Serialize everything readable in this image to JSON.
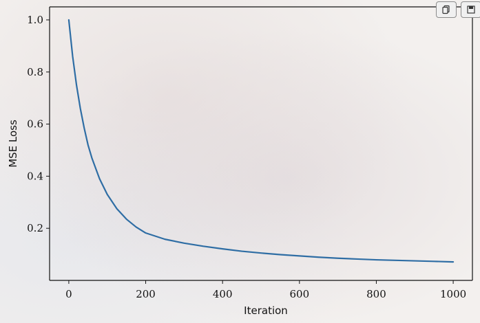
{
  "toolbar": {
    "copy_icon": "copy-icon",
    "save_icon": "save-icon"
  },
  "chart_data": {
    "type": "line",
    "title": "",
    "xlabel": "Iteration",
    "ylabel": "MSE Loss",
    "xlim": [
      -50,
      1050
    ],
    "ylim": [
      0.0,
      1.05
    ],
    "xticks": [
      "0",
      "200",
      "400",
      "600",
      "800",
      "1000"
    ],
    "xtick_values": [
      0,
      200,
      400,
      600,
      800,
      1000
    ],
    "yticks": [
      "0.2",
      "0.4",
      "0.6",
      "0.8",
      "1.0"
    ],
    "ytick_values": [
      0.2,
      0.4,
      0.6,
      0.8,
      1.0
    ],
    "grid": false,
    "series": [
      {
        "color": "#2e6da4",
        "x": [
          0,
          10,
          20,
          30,
          40,
          50,
          60,
          80,
          100,
          125,
          150,
          175,
          200,
          250,
          300,
          350,
          400,
          450,
          500,
          550,
          600,
          650,
          700,
          750,
          800,
          850,
          900,
          950,
          1000
        ],
        "y": [
          1.0,
          0.86,
          0.75,
          0.66,
          0.585,
          0.52,
          0.47,
          0.39,
          0.33,
          0.275,
          0.235,
          0.205,
          0.182,
          0.158,
          0.143,
          0.131,
          0.121,
          0.112,
          0.105,
          0.099,
          0.094,
          0.089,
          0.085,
          0.082,
          0.079,
          0.077,
          0.075,
          0.073,
          0.071
        ]
      }
    ]
  }
}
